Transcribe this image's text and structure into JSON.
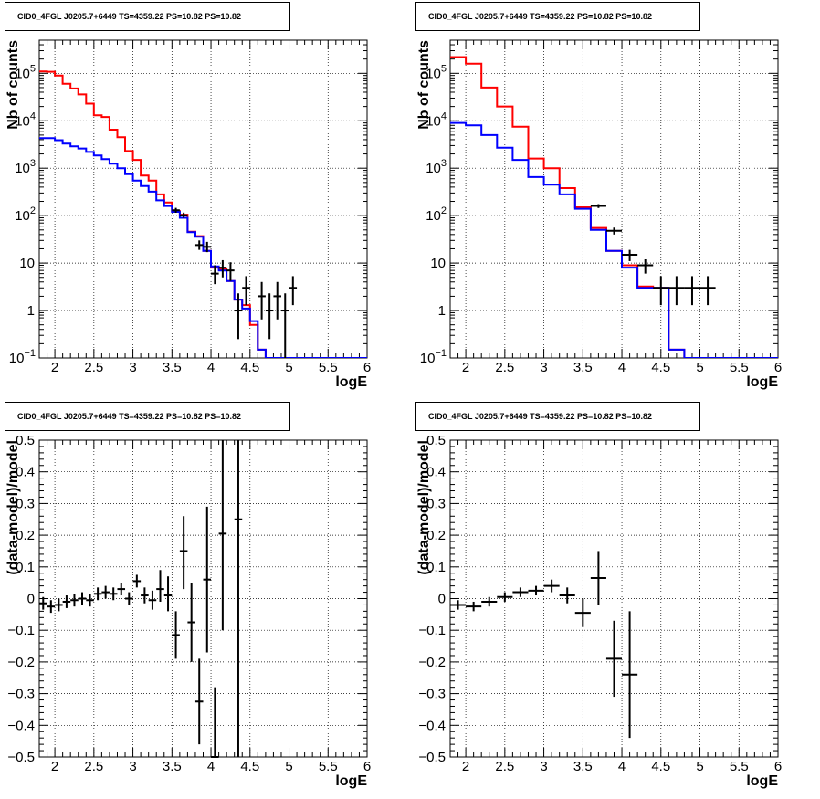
{
  "chart_data": [
    {
      "type": "histogram",
      "title": "CID0_4FGL J0205.7+6449 TS=4359.22 PS=10.82 PS=10.82",
      "xlabel": "logE",
      "ylabel": "Nb of counts",
      "yscale": "log",
      "xlim": [
        1.8,
        6.0
      ],
      "ylim": [
        0.1,
        500000
      ],
      "x_ticks": [
        "2",
        "2.5",
        "3",
        "3.5",
        "4",
        "4.5",
        "5",
        "5.5",
        "6"
      ],
      "y_ticks": [
        "10^-1",
        "1",
        "10",
        "10^2",
        "10^3",
        "10^4",
        "10^5"
      ],
      "grid": true,
      "bin_edges": [
        1.8,
        1.9,
        2.0,
        2.1,
        2.2,
        2.3,
        2.4,
        2.5,
        2.6,
        2.7,
        2.8,
        2.9,
        3.0,
        3.1,
        3.2,
        3.3,
        3.4,
        3.5,
        3.6,
        3.7,
        3.8,
        3.9,
        4.0,
        4.1,
        4.2,
        4.3,
        4.4,
        4.5,
        4.6,
        4.7,
        4.8,
        4.9,
        5.0,
        5.1,
        5.2,
        5.3,
        5.4,
        5.5,
        5.6,
        5.7,
        5.8,
        5.9,
        6.0
      ],
      "series": [
        {
          "color": "#ff0000",
          "values": [
            110000,
            108000,
            90000,
            60000,
            48000,
            36000,
            23000,
            13000,
            12000,
            6500,
            4500,
            2300,
            1500,
            700,
            550,
            280,
            190,
            125,
            105,
            46,
            37,
            18,
            8,
            7.5,
            4.2,
            1.7,
            1.3,
            0.5,
            0.15,
            0.1,
            0.1,
            0.1,
            0.1,
            0.1,
            0.1,
            0.1,
            0.1,
            0.1,
            0.1,
            0.1,
            0.1,
            0.1
          ]
        },
        {
          "color": "#0000ff",
          "values": [
            4300,
            4300,
            3900,
            3300,
            2900,
            2600,
            2200,
            1850,
            1550,
            1250,
            1000,
            750,
            550,
            420,
            320,
            210,
            160,
            120,
            90,
            45,
            36,
            18,
            8.5,
            7,
            4.2,
            1.7,
            1.1,
            0.6,
            0.15,
            0.1,
            0.1,
            0.1,
            0.1,
            0.1,
            0.1,
            0.1,
            0.1,
            0.1,
            0.1,
            0.1,
            0.1,
            0.1
          ]
        }
      ],
      "data_points": [
        {
          "x": 3.55,
          "xerr": 0.05,
          "y": 130,
          "ylo": 115,
          "yhi": 146
        },
        {
          "x": 3.65,
          "xerr": 0.05,
          "y": 102,
          "ylo": 90,
          "yhi": 116
        },
        {
          "x": 3.85,
          "xerr": 0.05,
          "y": 24,
          "ylo": 19,
          "yhi": 30
        },
        {
          "x": 3.95,
          "xerr": 0.05,
          "y": 22,
          "ylo": 17,
          "yhi": 28
        },
        {
          "x": 4.05,
          "xerr": 0.05,
          "y": 6,
          "ylo": 3.6,
          "yhi": 9
        },
        {
          "x": 4.15,
          "xerr": 0.05,
          "y": 8,
          "ylo": 5,
          "yhi": 11.5
        },
        {
          "x": 4.25,
          "xerr": 0.05,
          "y": 7,
          "ylo": 4.2,
          "yhi": 10.4
        },
        {
          "x": 4.35,
          "xerr": 0.05,
          "y": 1,
          "ylo": 0.25,
          "yhi": 2.3
        },
        {
          "x": 4.45,
          "xerr": 0.05,
          "y": 3,
          "ylo": 1.3,
          "yhi": 5.3
        },
        {
          "x": 4.65,
          "xerr": 0.05,
          "y": 2,
          "ylo": 0.65,
          "yhi": 4
        },
        {
          "x": 4.75,
          "xerr": 0.05,
          "y": 1,
          "ylo": 0.25,
          "yhi": 2.3
        },
        {
          "x": 4.85,
          "xerr": 0.05,
          "y": 2,
          "ylo": 0.65,
          "yhi": 4
        },
        {
          "x": 4.95,
          "xerr": 0.05,
          "y": 1,
          "ylo": 0.1,
          "yhi": 2.3
        },
        {
          "x": 5.05,
          "xerr": 0.05,
          "y": 3,
          "ylo": 1.3,
          "yhi": 5.3
        }
      ]
    },
    {
      "type": "histogram",
      "title": "CID0_4FGL J0205.7+6449 TS=4359.22 PS=10.82 PS=10.82",
      "xlabel": "logE",
      "ylabel": "Nb of counts",
      "yscale": "log",
      "xlim": [
        1.8,
        6.0
      ],
      "ylim": [
        0.1,
        500000
      ],
      "x_ticks": [
        "2",
        "2.5",
        "3",
        "3.5",
        "4",
        "4.5",
        "5",
        "5.5",
        "6"
      ],
      "y_ticks": [
        "10^-1",
        "1",
        "10",
        "10^2",
        "10^3",
        "10^4",
        "10^5"
      ],
      "grid": true,
      "bin_edges": [
        1.8,
        2.0,
        2.2,
        2.4,
        2.6,
        2.8,
        3.0,
        3.2,
        3.4,
        3.6,
        3.8,
        4.0,
        4.2,
        4.4,
        4.6,
        4.8,
        5.0,
        5.2,
        5.4,
        5.6,
        5.8,
        6.0
      ],
      "series": [
        {
          "color": "#ff0000",
          "values": [
            220000,
            160000,
            50000,
            20000,
            7500,
            1600,
            1000,
            380,
            150,
            55,
            18,
            9,
            3.2,
            3,
            0.15,
            0.1,
            0.1,
            0.1,
            0.1,
            0.1,
            0.1
          ]
        },
        {
          "color": "#0000ff",
          "values": [
            9000,
            8000,
            5000,
            2700,
            1500,
            650,
            450,
            280,
            140,
            50,
            18,
            8,
            3,
            3,
            0.15,
            0.1,
            0.1,
            0.1,
            0.1,
            0.1,
            0.1
          ]
        }
      ],
      "data_points": [
        {
          "x": 3.7,
          "xerr": 0.1,
          "y": 160,
          "ylo": 145,
          "yhi": 175
        },
        {
          "x": 3.9,
          "xerr": 0.1,
          "y": 48,
          "ylo": 40,
          "yhi": 56
        },
        {
          "x": 4.1,
          "xerr": 0.1,
          "y": 15,
          "ylo": 11,
          "yhi": 19
        },
        {
          "x": 4.3,
          "xerr": 0.1,
          "y": 9,
          "ylo": 6,
          "yhi": 12
        },
        {
          "x": 4.5,
          "xerr": 0.1,
          "y": 3,
          "ylo": 1.3,
          "yhi": 5.3
        },
        {
          "x": 4.7,
          "xerr": 0.1,
          "y": 3,
          "ylo": 1.3,
          "yhi": 5.3
        },
        {
          "x": 4.9,
          "xerr": 0.1,
          "y": 3,
          "ylo": 1.3,
          "yhi": 5.3
        },
        {
          "x": 5.1,
          "xerr": 0.1,
          "y": 3,
          "ylo": 1.3,
          "yhi": 5.3
        }
      ]
    },
    {
      "type": "scatter",
      "title": "CID0_4FGL J0205.7+6449 TS=4359.22 PS=10.82 PS=10.82",
      "xlabel": "logE",
      "ylabel": "(data-model)/model",
      "yscale": "linear",
      "xlim": [
        1.8,
        6.0
      ],
      "ylim": [
        -0.5,
        0.5
      ],
      "x_ticks": [
        "2",
        "2.5",
        "3",
        "3.5",
        "4",
        "4.5",
        "5",
        "5.5",
        "6"
      ],
      "y_ticks": [
        "−0.5",
        "−0.4",
        "−0.3",
        "−0.2",
        "−0.1",
        "0",
        "0.1",
        "0.2",
        "0.3",
        "0.4",
        "0.5"
      ],
      "y_tick_values": [
        -0.5,
        -0.4,
        -0.3,
        -0.2,
        -0.1,
        0,
        0.1,
        0.2,
        0.3,
        0.4,
        0.5
      ],
      "grid": true,
      "data_points": [
        {
          "x": 1.85,
          "xerr": 0.05,
          "y": -0.015,
          "ylo": -0.035,
          "yhi": 0.005
        },
        {
          "x": 1.95,
          "xerr": 0.05,
          "y": -0.025,
          "ylo": -0.045,
          "yhi": -0.005
        },
        {
          "x": 2.05,
          "xerr": 0.05,
          "y": -0.02,
          "ylo": -0.04,
          "yhi": 0.0
        },
        {
          "x": 2.15,
          "xerr": 0.05,
          "y": -0.01,
          "ylo": -0.03,
          "yhi": 0.01
        },
        {
          "x": 2.25,
          "xerr": 0.05,
          "y": -0.005,
          "ylo": -0.025,
          "yhi": 0.015
        },
        {
          "x": 2.35,
          "xerr": 0.05,
          "y": 0.0,
          "ylo": -0.02,
          "yhi": 0.02
        },
        {
          "x": 2.45,
          "xerr": 0.05,
          "y": -0.005,
          "ylo": -0.025,
          "yhi": 0.015
        },
        {
          "x": 2.55,
          "xerr": 0.05,
          "y": 0.015,
          "ylo": -0.005,
          "yhi": 0.035
        },
        {
          "x": 2.65,
          "xerr": 0.05,
          "y": 0.02,
          "ylo": 0.0,
          "yhi": 0.04
        },
        {
          "x": 2.75,
          "xerr": 0.05,
          "y": 0.015,
          "ylo": -0.005,
          "yhi": 0.035
        },
        {
          "x": 2.85,
          "xerr": 0.05,
          "y": 0.03,
          "ylo": 0.01,
          "yhi": 0.05
        },
        {
          "x": 2.95,
          "xerr": 0.05,
          "y": 0.0,
          "ylo": -0.02,
          "yhi": 0.02
        },
        {
          "x": 3.05,
          "xerr": 0.05,
          "y": 0.055,
          "ylo": 0.035,
          "yhi": 0.075
        },
        {
          "x": 3.15,
          "xerr": 0.05,
          "y": 0.01,
          "ylo": -0.015,
          "yhi": 0.035
        },
        {
          "x": 3.25,
          "xerr": 0.05,
          "y": -0.005,
          "ylo": -0.035,
          "yhi": 0.025
        },
        {
          "x": 3.35,
          "xerr": 0.05,
          "y": 0.03,
          "ylo": -0.01,
          "yhi": 0.09
        },
        {
          "x": 3.45,
          "xerr": 0.05,
          "y": 0.01,
          "ylo": -0.04,
          "yhi": 0.07
        },
        {
          "x": 3.55,
          "xerr": 0.05,
          "y": -0.115,
          "ylo": -0.19,
          "yhi": -0.04
        },
        {
          "x": 3.65,
          "xerr": 0.05,
          "y": 0.15,
          "ylo": 0.03,
          "yhi": 0.26
        },
        {
          "x": 3.75,
          "xerr": 0.05,
          "y": -0.075,
          "ylo": -0.2,
          "yhi": 0.05
        },
        {
          "x": 3.85,
          "xerr": 0.05,
          "y": -0.325,
          "ylo": -0.46,
          "yhi": -0.19
        },
        {
          "x": 3.95,
          "xerr": 0.05,
          "y": 0.06,
          "ylo": -0.17,
          "yhi": 0.29
        },
        {
          "x": 4.05,
          "xerr": 0.05,
          "y": -0.5,
          "ylo": -0.5,
          "yhi": -0.28
        },
        {
          "x": 4.15,
          "xerr": 0.05,
          "y": 0.205,
          "ylo": -0.1,
          "yhi": 0.5
        },
        {
          "x": 4.35,
          "xerr": 0.05,
          "y": 0.25,
          "ylo": -0.5,
          "yhi": 0.5
        }
      ]
    },
    {
      "type": "scatter",
      "title": "CID0_4FGL J0205.7+6449 TS=4359.22 PS=10.82 PS=10.82",
      "xlabel": "logE",
      "ylabel": "(data-model)/model",
      "yscale": "linear",
      "xlim": [
        1.8,
        6.0
      ],
      "ylim": [
        -0.5,
        0.5
      ],
      "x_ticks": [
        "2",
        "2.5",
        "3",
        "3.5",
        "4",
        "4.5",
        "5",
        "5.5",
        "6"
      ],
      "y_ticks": [
        "−0.5",
        "−0.4",
        "−0.3",
        "−0.2",
        "−0.1",
        "0",
        "0.1",
        "0.2",
        "0.3",
        "0.4",
        "0.5"
      ],
      "y_tick_values": [
        -0.5,
        -0.4,
        -0.3,
        -0.2,
        -0.1,
        0,
        0.1,
        0.2,
        0.3,
        0.4,
        0.5
      ],
      "grid": true,
      "data_points": [
        {
          "x": 1.9,
          "xerr": 0.1,
          "y": -0.02,
          "ylo": -0.035,
          "yhi": -0.005
        },
        {
          "x": 2.1,
          "xerr": 0.1,
          "y": -0.025,
          "ylo": -0.04,
          "yhi": -0.01
        },
        {
          "x": 2.3,
          "xerr": 0.1,
          "y": -0.01,
          "ylo": -0.025,
          "yhi": 0.005
        },
        {
          "x": 2.5,
          "xerr": 0.1,
          "y": 0.005,
          "ylo": -0.01,
          "yhi": 0.02
        },
        {
          "x": 2.7,
          "xerr": 0.1,
          "y": 0.02,
          "ylo": 0.005,
          "yhi": 0.035
        },
        {
          "x": 2.9,
          "xerr": 0.1,
          "y": 0.025,
          "ylo": 0.01,
          "yhi": 0.04
        },
        {
          "x": 3.1,
          "xerr": 0.1,
          "y": 0.04,
          "ylo": 0.02,
          "yhi": 0.06
        },
        {
          "x": 3.3,
          "xerr": 0.1,
          "y": 0.01,
          "ylo": -0.015,
          "yhi": 0.035
        },
        {
          "x": 3.5,
          "xerr": 0.1,
          "y": -0.045,
          "ylo": -0.09,
          "yhi": 0.0
        },
        {
          "x": 3.7,
          "xerr": 0.1,
          "y": 0.065,
          "ylo": -0.02,
          "yhi": 0.15
        },
        {
          "x": 3.9,
          "xerr": 0.1,
          "y": -0.19,
          "ylo": -0.31,
          "yhi": -0.07
        },
        {
          "x": 4.1,
          "xerr": 0.1,
          "y": -0.24,
          "ylo": -0.44,
          "yhi": -0.04
        }
      ]
    }
  ]
}
